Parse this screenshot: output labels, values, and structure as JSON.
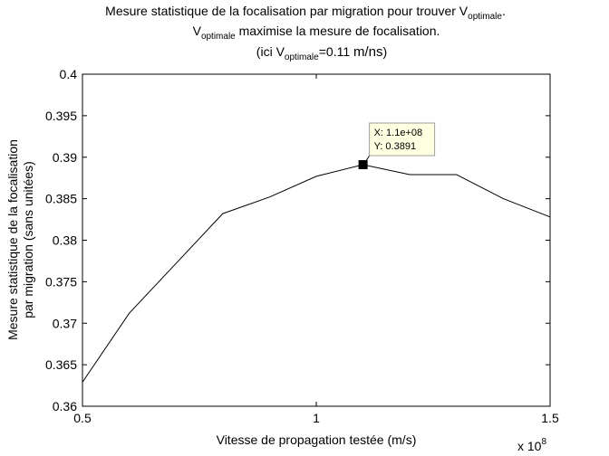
{
  "chart_data": {
    "type": "line",
    "title": {
      "line1_main": "Mesure statistique de la focalisation par migration pour trouver V",
      "line1_sub": "optimale",
      "line1_end": ".",
      "line2_v": "V",
      "line2_sub": "optimale",
      "line2_rest": " maximise la mesure de focalisation.",
      "line3_pre": "(ici V",
      "line3_sub": "optimale",
      "line3_value": "=0.11 ",
      "line3_unit": "m/ns",
      "line3_close": ")"
    },
    "xlabel": "Vitesse de propagation testée (m/s)",
    "ylabel_line1": "Mesure statistique de la focalisation",
    "ylabel_line2": "par migration (sans unitées)",
    "x_multiplier": {
      "base": "x 10",
      "exp": "8"
    },
    "xlim": [
      0.5,
      1.5
    ],
    "ylim": [
      0.36,
      0.4
    ],
    "xticks": [
      "0.5",
      "1",
      "1.5"
    ],
    "yticks": [
      "0.36",
      "0.365",
      "0.37",
      "0.375",
      "0.38",
      "0.385",
      "0.39",
      "0.395",
      "0.4"
    ],
    "series": [
      {
        "x": [
          0.5,
          0.6,
          0.7,
          0.8,
          0.9,
          1.0,
          1.1,
          1.2,
          1.3,
          1.4,
          1.5
        ],
        "y": [
          0.3629,
          0.3712,
          0.3772,
          0.3832,
          0.3852,
          0.3877,
          0.3891,
          0.3879,
          0.3879,
          0.385,
          0.3828
        ],
        "color": "#000000"
      }
    ],
    "datatip": {
      "x": 1.1,
      "y": 0.3891,
      "line1": "X: 1.1e+08",
      "line2": "Y: 0.3891"
    },
    "grid": false
  }
}
